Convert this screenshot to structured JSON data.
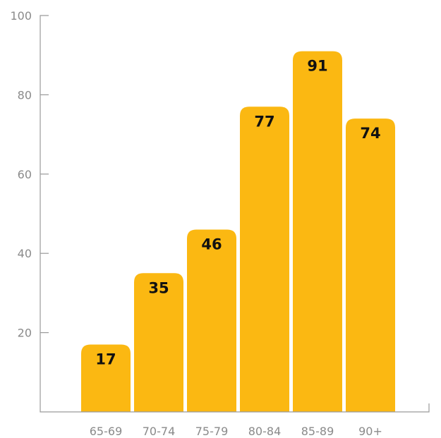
{
  "chart_data": {
    "type": "bar",
    "categories": [
      "65-69",
      "70-74",
      "75-79",
      "80-84",
      "85-89",
      "90+"
    ],
    "values": [
      17,
      35,
      46,
      77,
      91,
      74
    ],
    "title": "",
    "xlabel": "",
    "ylabel": "",
    "ylim": [
      0,
      100
    ],
    "yticks": [
      20,
      40,
      60,
      80,
      100
    ],
    "grid": false,
    "bar_color": "#FBB812",
    "value_label_color": "#111111",
    "axis_color": "#9a9a9a",
    "tick_label_color": "#8a8a8a"
  }
}
